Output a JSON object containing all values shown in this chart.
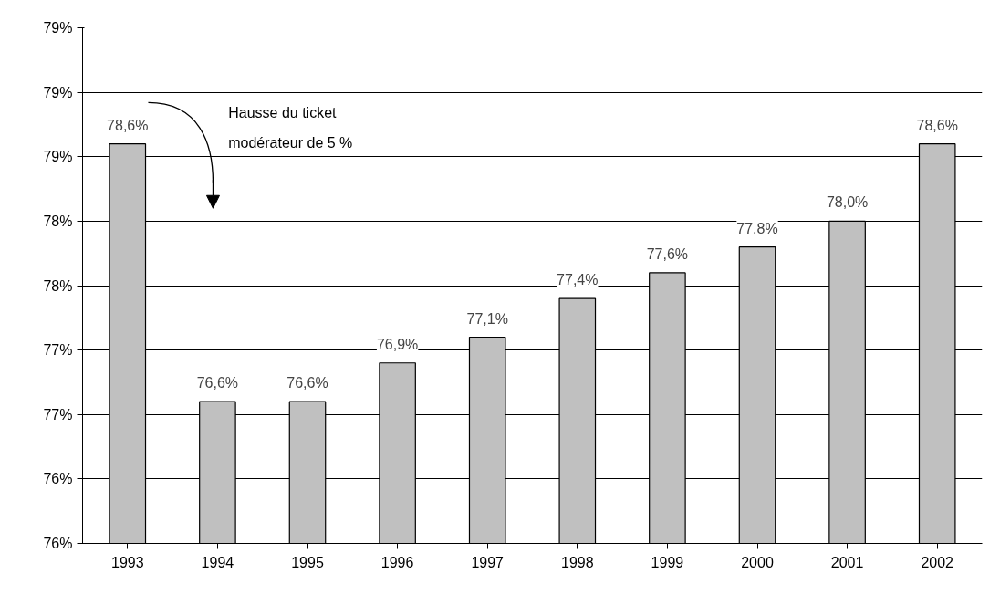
{
  "chart_data": {
    "type": "bar",
    "categories": [
      "1993",
      "1994",
      "1995",
      "1996",
      "1997",
      "1998",
      "1999",
      "2000",
      "2001",
      "2002"
    ],
    "values": [
      78.6,
      76.6,
      76.6,
      76.9,
      77.1,
      77.4,
      77.6,
      77.8,
      78.0,
      78.6
    ],
    "value_labels": [
      "78,6%",
      "76,6%",
      "76,6%",
      "76,9%",
      "77,1%",
      "77,4%",
      "77,6%",
      "77,8%",
      "78,0%",
      "78,6%"
    ],
    "color": "#c0c0c0",
    "ylim": [
      75.5,
      79.5
    ],
    "yticks": [
      {
        "value": 75.5,
        "label": "76%"
      },
      {
        "value": 76.0,
        "label": "76%"
      },
      {
        "value": 76.5,
        "label": "77%"
      },
      {
        "value": 77.0,
        "label": "77%"
      },
      {
        "value": 77.5,
        "label": "78%"
      },
      {
        "value": 78.0,
        "label": "78%"
      },
      {
        "value": 78.5,
        "label": "79%"
      },
      {
        "value": 79.0,
        "label": "79%"
      },
      {
        "value": 79.5,
        "label": "79%"
      }
    ],
    "grid": "y",
    "annotations": [
      "Hausse du ticket modérateur de 5 %"
    ]
  }
}
